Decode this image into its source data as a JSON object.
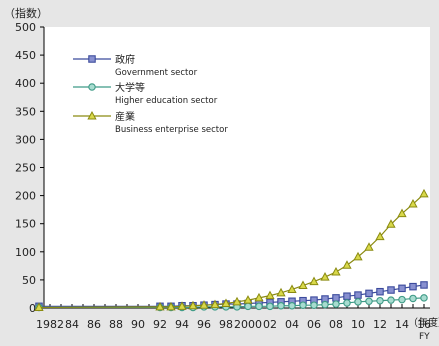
{
  "chart_data": {
    "type": "line",
    "ylabel": "（指数）",
    "xunit": "（年度）",
    "xunit_sub": "FY",
    "ylim": [
      0,
      500
    ],
    "yticks": [
      0,
      50,
      100,
      150,
      200,
      250,
      300,
      350,
      400,
      450,
      500
    ],
    "grid": false,
    "legend_position": "top-left",
    "xcategories": [
      "1982",
      "83",
      "84",
      "85",
      "86",
      "87",
      "88",
      "89",
      "90",
      "91",
      "92",
      "93",
      "94",
      "95",
      "96",
      "97",
      "98",
      "99",
      "2000",
      "01",
      "02",
      "03",
      "04",
      "05",
      "06",
      "07",
      "08",
      "09",
      "10",
      "11",
      "12",
      "13",
      "14",
      "15",
      "16"
    ],
    "xtick_labels": [
      "1982",
      "84",
      "86",
      "88",
      "90",
      "92",
      "94",
      "96",
      "98",
      "2000",
      "02",
      "04",
      "06",
      "08",
      "10",
      "12",
      "14",
      "16"
    ],
    "series": [
      {
        "name": "政府",
        "name_en": "Government sector",
        "color": "#3b4a9c",
        "fill": "#8890d0",
        "marker": "square",
        "x": [
          "1991",
          "92",
          "93",
          "94",
          "95",
          "96",
          "97",
          "98",
          "99",
          "2000",
          "01",
          "02",
          "03",
          "04",
          "05",
          "06",
          "07",
          "08",
          "09",
          "10",
          "11",
          "12",
          "13",
          "14",
          "15",
          "16"
        ],
        "values": [
          3,
          3,
          3,
          4,
          4,
          5,
          6,
          7,
          7,
          8,
          9,
          10,
          11,
          12,
          13,
          14,
          16,
          18,
          21,
          23,
          26,
          29,
          32,
          35,
          38,
          41
        ]
      },
      {
        "name": "大学等",
        "name_en": "Higher education sector",
        "color": "#3e9a86",
        "fill": "#a8dcd0",
        "marker": "circle",
        "x": [
          "1991",
          "92",
          "93",
          "94",
          "95",
          "96",
          "97",
          "98",
          "99",
          "2000",
          "01",
          "02",
          "03",
          "04",
          "05",
          "06",
          "07",
          "08",
          "09",
          "10",
          "11",
          "12",
          "13",
          "14",
          "15",
          "16"
        ],
        "values": [
          1,
          1,
          1,
          1,
          1,
          2,
          2,
          2,
          2,
          3,
          3,
          3,
          4,
          4,
          5,
          5,
          6,
          7,
          9,
          11,
          12,
          13,
          14,
          15,
          17,
          18
        ]
      },
      {
        "name": "産業",
        "name_en": "Business enterprise sector",
        "color": "#8a8a10",
        "fill": "#d8d84a",
        "marker": "triangle",
        "x": [
          "1991",
          "92",
          "93",
          "94",
          "95",
          "96",
          "97",
          "98",
          "99",
          "2000",
          "01",
          "02",
          "03",
          "04",
          "05",
          "06",
          "07",
          "08",
          "09",
          "10",
          "11",
          "12",
          "13",
          "14",
          "15",
          "16"
        ],
        "values": [
          1,
          2,
          2,
          3,
          4,
          5,
          6,
          8,
          11,
          14,
          18,
          22,
          27,
          33,
          40,
          47,
          55,
          64,
          76,
          91,
          108,
          127,
          149,
          168,
          185,
          203
        ]
      }
    ]
  }
}
